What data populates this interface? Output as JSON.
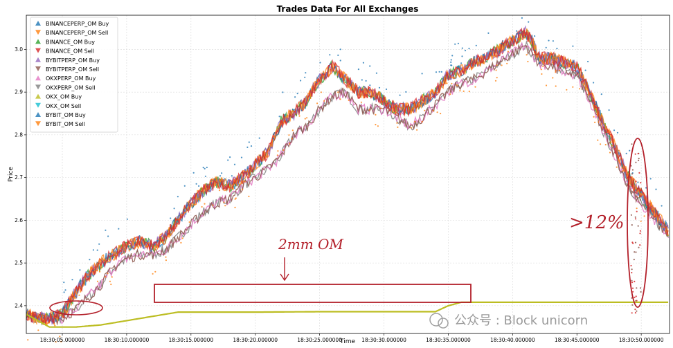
{
  "chart_data": {
    "type": "scatter",
    "title": "Trades Data For All Exchanges",
    "xlabel": "Time",
    "ylabel": "Price",
    "x_tick_labels": [
      "18:30:05.000000",
      "18:30:10.000000",
      "18:30:15.000000",
      "18:30:20.000000",
      "18:30:25.000000",
      "18:30:30.000000",
      "18:30:35.000000",
      "18:30:40.000000",
      "18:30:45.000000",
      "18:30:50.000000"
    ],
    "x_tick_seconds": [
      5,
      10,
      15,
      20,
      25,
      30,
      35,
      40,
      45,
      50
    ],
    "xlim_seconds": [
      2.2,
      52.2
    ],
    "ylim": [
      2.335,
      3.08
    ],
    "y_ticks": [
      2.4,
      2.5,
      2.6,
      2.7,
      2.8,
      2.9,
      3.0
    ],
    "grid": true,
    "legend_position": "top-left",
    "series": [
      {
        "name": "BINANCEPERP_OM Buy",
        "color": "#1f77b4",
        "marker": "triangle-up"
      },
      {
        "name": "BINANCEPERP_OM Sell",
        "color": "#ff7f0e",
        "marker": "triangle-down"
      },
      {
        "name": "BINANCE_OM Buy",
        "color": "#2ca02c",
        "marker": "triangle-up"
      },
      {
        "name": "BINANCE_OM Sell",
        "color": "#d62728",
        "marker": "triangle-down"
      },
      {
        "name": "BYBITPERP_OM Buy",
        "color": "#9467bd",
        "marker": "triangle-up"
      },
      {
        "name": "BYBITPERP_OM Sell",
        "color": "#8c564b",
        "marker": "triangle-down"
      },
      {
        "name": "OKXPERP_OM Buy",
        "color": "#e377c2",
        "marker": "triangle-up"
      },
      {
        "name": "OKXPERP_OM Sell",
        "color": "#7f7f7f",
        "marker": "triangle-down"
      },
      {
        "name": "OKX_OM Buy",
        "color": "#bcbd22",
        "marker": "triangle-up"
      },
      {
        "name": "OKX_OM Sell",
        "color": "#17becf",
        "marker": "triangle-down"
      },
      {
        "name": "BYBIT_OM Buy",
        "color": "#1f77b4",
        "marker": "triangle-up"
      },
      {
        "name": "BYBIT_OM Sell",
        "color": "#ff7f0e",
        "marker": "triangle-down"
      }
    ],
    "main_price_path": [
      [
        2.2,
        2.38
      ],
      [
        3,
        2.37
      ],
      [
        4,
        2.37
      ],
      [
        5,
        2.38
      ],
      [
        6,
        2.43
      ],
      [
        7,
        2.47
      ],
      [
        8,
        2.5
      ],
      [
        9,
        2.52
      ],
      [
        10,
        2.54
      ],
      [
        11,
        2.55
      ],
      [
        12,
        2.54
      ],
      [
        13,
        2.56
      ],
      [
        14,
        2.6
      ],
      [
        15,
        2.64
      ],
      [
        16,
        2.67
      ],
      [
        17,
        2.69
      ],
      [
        18,
        2.68
      ],
      [
        19,
        2.7
      ],
      [
        20,
        2.73
      ],
      [
        21,
        2.76
      ],
      [
        22,
        2.83
      ],
      [
        23,
        2.85
      ],
      [
        24,
        2.88
      ],
      [
        25,
        2.93
      ],
      [
        26,
        2.96
      ],
      [
        27,
        2.93
      ],
      [
        28,
        2.9
      ],
      [
        29,
        2.9
      ],
      [
        30,
        2.88
      ],
      [
        31,
        2.86
      ],
      [
        32,
        2.86
      ],
      [
        33,
        2.88
      ],
      [
        34,
        2.9
      ],
      [
        35,
        2.94
      ],
      [
        36,
        2.95
      ],
      [
        37,
        2.97
      ],
      [
        38,
        2.98
      ],
      [
        39,
        3.0
      ],
      [
        40,
        3.02
      ],
      [
        41,
        3.04
      ],
      [
        41.5,
        3.02
      ],
      [
        42,
        2.98
      ],
      [
        43,
        2.98
      ],
      [
        44,
        2.97
      ],
      [
        45,
        2.96
      ],
      [
        46,
        2.9
      ],
      [
        47,
        2.83
      ],
      [
        48,
        2.77
      ],
      [
        49,
        2.7
      ],
      [
        50,
        2.66
      ],
      [
        51,
        2.62
      ],
      [
        52,
        2.58
      ],
      [
        52.2,
        2.57
      ]
    ],
    "lagging_series_path": [
      [
        2.2,
        2.38
      ],
      [
        4,
        2.37
      ],
      [
        5,
        2.37
      ],
      [
        6,
        2.39
      ],
      [
        7,
        2.42
      ],
      [
        8,
        2.45
      ],
      [
        9,
        2.49
      ],
      [
        10,
        2.51
      ],
      [
        11,
        2.52
      ],
      [
        12,
        2.52
      ],
      [
        13,
        2.53
      ],
      [
        14,
        2.56
      ],
      [
        15,
        2.59
      ],
      [
        16,
        2.62
      ],
      [
        17,
        2.64
      ],
      [
        18,
        2.65
      ],
      [
        19,
        2.68
      ],
      [
        20,
        2.7
      ],
      [
        21,
        2.72
      ],
      [
        22,
        2.75
      ],
      [
        23,
        2.8
      ],
      [
        24,
        2.82
      ],
      [
        25,
        2.86
      ],
      [
        26,
        2.89
      ],
      [
        27,
        2.9
      ],
      [
        28,
        2.86
      ],
      [
        29,
        2.86
      ],
      [
        30,
        2.86
      ],
      [
        31,
        2.84
      ],
      [
        32,
        2.82
      ],
      [
        33,
        2.84
      ],
      [
        34,
        2.87
      ],
      [
        35,
        2.9
      ],
      [
        36,
        2.92
      ],
      [
        37,
        2.93
      ],
      [
        38,
        2.95
      ],
      [
        39,
        2.97
      ],
      [
        40,
        2.99
      ],
      [
        41,
        3.01
      ],
      [
        42,
        2.97
      ],
      [
        43,
        2.96
      ],
      [
        44,
        2.95
      ],
      [
        45,
        2.94
      ],
      [
        46,
        2.88
      ],
      [
        47,
        2.81
      ],
      [
        48,
        2.75
      ],
      [
        49,
        2.68
      ],
      [
        50,
        2.64
      ],
      [
        51,
        2.6
      ],
      [
        52,
        2.57
      ],
      [
        52.2,
        2.56
      ]
    ],
    "okx_om_buy_path": [
      [
        2.2,
        2.38
      ],
      [
        4,
        2.35
      ],
      [
        6,
        2.35
      ],
      [
        8,
        2.355
      ],
      [
        9,
        2.36
      ],
      [
        10,
        2.365
      ],
      [
        11,
        2.37
      ],
      [
        12,
        2.375
      ],
      [
        14,
        2.385
      ],
      [
        20,
        2.385
      ],
      [
        25,
        2.386
      ],
      [
        30,
        2.386
      ],
      [
        34,
        2.386
      ],
      [
        35,
        2.4
      ],
      [
        36,
        2.408
      ],
      [
        44,
        2.408
      ],
      [
        52.2,
        2.408
      ]
    ],
    "annotations": [
      {
        "text": "2mm OM",
        "color": "#b3202a"
      },
      {
        "text": ">12%",
        "color": "#b3202a"
      }
    ]
  },
  "watermark": {
    "text": "公众号 : Block unicorn"
  }
}
